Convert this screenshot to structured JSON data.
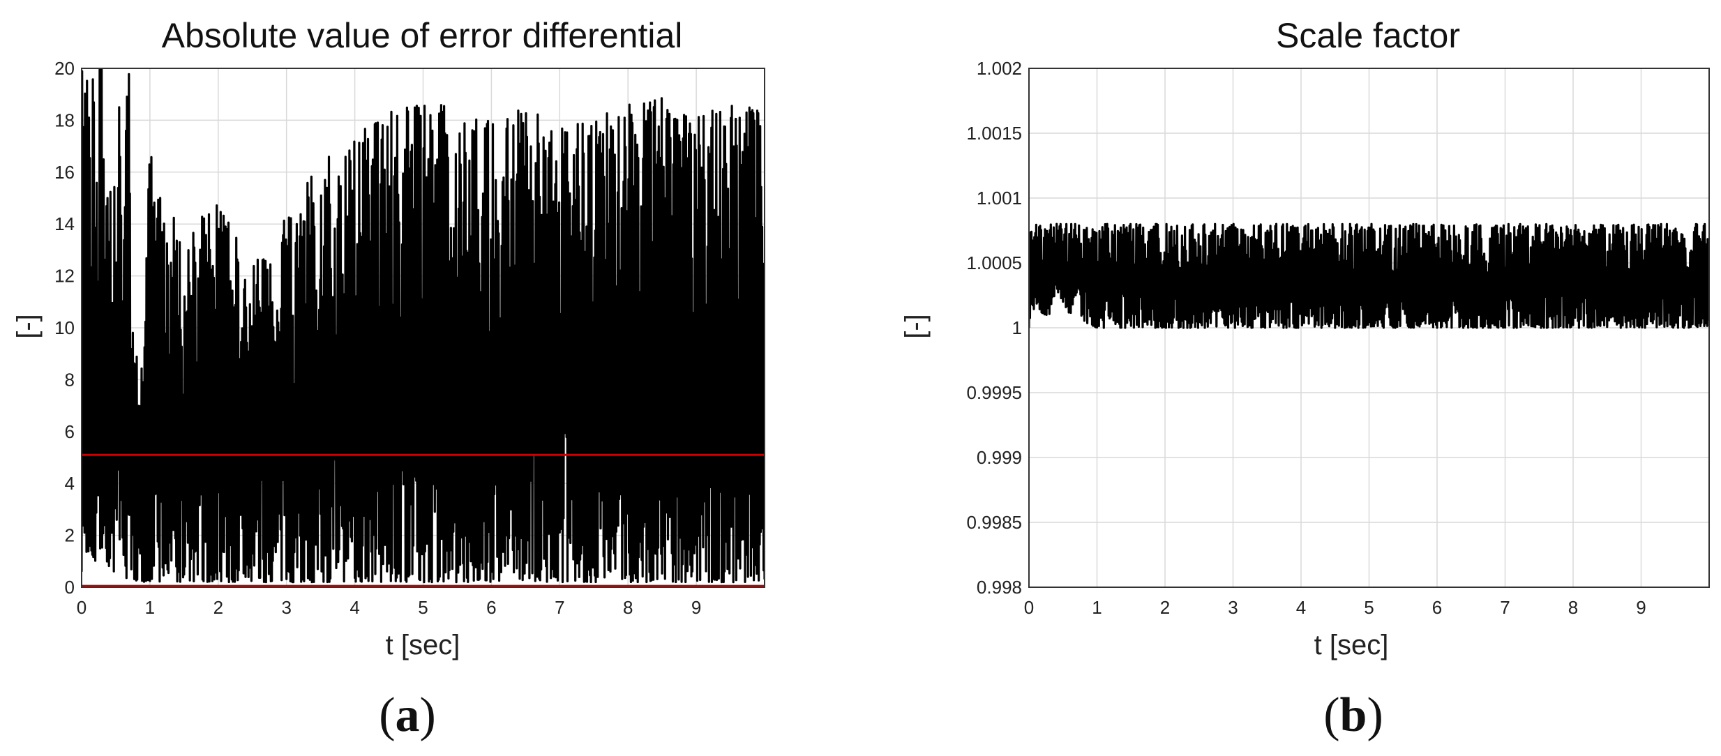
{
  "chart_data": [
    {
      "type": "line",
      "panel_label": "a",
      "title": "Absolute value of error differential",
      "xlabel": "t [sec]",
      "ylabel": "[-]",
      "xlim": [
        0,
        10
      ],
      "ylim": [
        0,
        20
      ],
      "xticks": [
        "0",
        "1",
        "2",
        "3",
        "4",
        "5",
        "6",
        "7",
        "8",
        "9"
      ],
      "yticks": [
        "0",
        "2",
        "4",
        "6",
        "8",
        "10",
        "12",
        "14",
        "16",
        "18",
        "20"
      ],
      "grid": true,
      "series": [
        {
          "color": "#000000",
          "style": "dense oscillating signal",
          "x": [
            0,
            0.1,
            0.2,
            0.3,
            0.4,
            0.5,
            0.6,
            0.7,
            0.8,
            0.9,
            1.0,
            1.5,
            2.0,
            2.5,
            3.0,
            3.5,
            4.0,
            4.5,
            5.0,
            5.5,
            6.0,
            6.5,
            7.0,
            7.5,
            8.0,
            8.5,
            9.0,
            9.5,
            10.0
          ],
          "upper": [
            20,
            20,
            20,
            20,
            14,
            20,
            17,
            20,
            10,
            10,
            16.8,
            13.7,
            14.8,
            12.4,
            14.3,
            16.4,
            17.4,
            18.4,
            18.6,
            18.6,
            17.9,
            18.5,
            17.9,
            18.1,
            18.6,
            18.9,
            18.3,
            18.6,
            18.4
          ],
          "lower": [
            0.6,
            1.2,
            1.0,
            1.5,
            0.7,
            0.5,
            0.3,
            0.4,
            0.2,
            0.1,
            0.2,
            0.2,
            0.2,
            0.2,
            0.2,
            0.2,
            0.2,
            0.2,
            0.2,
            0.2,
            0.2,
            0.2,
            0.2,
            0.2,
            0.2,
            0.2,
            0.2,
            0.2,
            0.2
          ]
        },
        {
          "color": "#cc0000",
          "style": "threshold line",
          "y": 5.1
        },
        {
          "color": "#cc0000",
          "style": "threshold line",
          "y": 0.05
        }
      ]
    },
    {
      "type": "line",
      "panel_label": "b",
      "title": "Scale factor",
      "xlabel": "t [sec]",
      "ylabel": "[-]",
      "xlim": [
        0,
        10
      ],
      "ylim": [
        0.998,
        1.002
      ],
      "xticks": [
        "0",
        "1",
        "2",
        "3",
        "4",
        "5",
        "6",
        "7",
        "8",
        "9"
      ],
      "yticks": [
        "0.998",
        "0.9985",
        "0.999",
        "0.9995",
        "1",
        "1.0005",
        "1.001",
        "1.0015",
        "1.002"
      ],
      "grid": true,
      "series": [
        {
          "color": "#000000",
          "style": "dense oscillating signal",
          "x": [
            0,
            0.1,
            0.2,
            0.3,
            0.4,
            0.5,
            0.6,
            0.7,
            0.8,
            1.0,
            2.0,
            3.0,
            4.0,
            5.0,
            6.0,
            7.0,
            8.0,
            9.0,
            10.0
          ],
          "upper": [
            1.0008,
            1.0008,
            1.0008,
            1.0008,
            1.0008,
            1.0008,
            1.0008,
            1.0008,
            1.0008,
            1.0008,
            1.0008,
            1.0008,
            1.0008,
            1.0008,
            1.0008,
            1.0008,
            1.0008,
            1.0008,
            1.0008
          ],
          "lower": [
            1.0,
            1.0002,
            1.0001,
            1.0001,
            1.0003,
            1.0002,
            1.0001,
            1.0002,
            1.00005,
            1.0,
            1.0,
            1.0,
            1.0,
            1.0,
            1.0,
            1.0,
            1.0,
            1.0,
            1.0
          ]
        }
      ]
    }
  ],
  "captions": {
    "a": "(a)",
    "b": "(b)"
  }
}
